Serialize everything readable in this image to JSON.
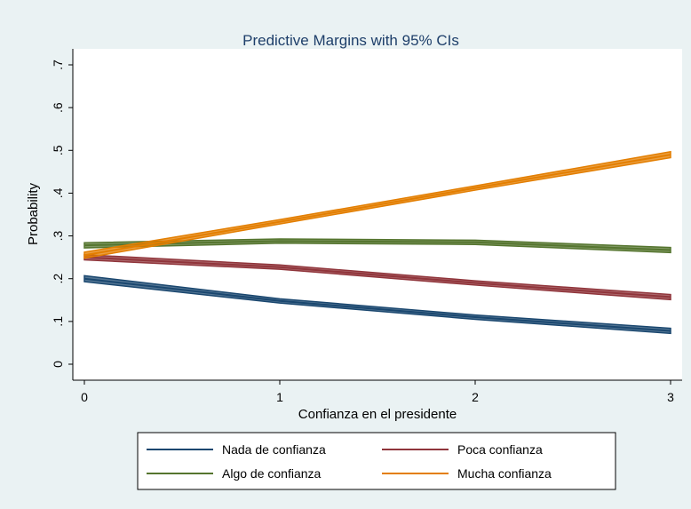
{
  "chart_data": {
    "type": "line",
    "title": "Predictive Margins with 95% CIs",
    "x_label": "Confianza en el presidente",
    "y_label": "Probability",
    "x": [
      0,
      1,
      2,
      3
    ],
    "series": [
      {
        "name": "Nada de confianza",
        "color": "#1a476f",
        "values": [
          0.2,
          0.148,
          0.11,
          0.078
        ],
        "lower": [
          0.193,
          0.143,
          0.105,
          0.072
        ],
        "upper": [
          0.207,
          0.153,
          0.115,
          0.084
        ]
      },
      {
        "name": "Poca confianza",
        "color": "#90353b",
        "values": [
          0.25,
          0.227,
          0.19,
          0.157
        ],
        "lower": [
          0.244,
          0.222,
          0.185,
          0.151
        ],
        "upper": [
          0.256,
          0.232,
          0.195,
          0.163
        ]
      },
      {
        "name": "Algo de confianza",
        "color": "#55752f",
        "values": [
          0.278,
          0.288,
          0.285,
          0.267
        ],
        "lower": [
          0.272,
          0.283,
          0.28,
          0.261
        ],
        "upper": [
          0.284,
          0.293,
          0.29,
          0.273
        ]
      },
      {
        "name": "Mucha confianza",
        "color": "#e37e00",
        "values": [
          0.255,
          0.333,
          0.412,
          0.49
        ],
        "lower": [
          0.248,
          0.328,
          0.407,
          0.483
        ],
        "upper": [
          0.262,
          0.338,
          0.417,
          0.497
        ]
      }
    ],
    "xlim": [
      0,
      3
    ],
    "ylim": [
      0,
      0.7
    ],
    "xticks": [
      0,
      1,
      2,
      3
    ],
    "yticks": [
      0,
      {
        "value": 0.1,
        "label": ".1"
      },
      {
        "value": 0.2,
        "label": ".2"
      },
      {
        "value": 0.3,
        "label": ".3"
      },
      {
        "value": 0.4,
        "label": ".4"
      },
      {
        "value": 0.5,
        "label": ".5"
      },
      {
        "value": 0.6,
        "label": ".6"
      },
      {
        "value": 0.7,
        "label": ".7"
      }
    ],
    "grid": false
  }
}
